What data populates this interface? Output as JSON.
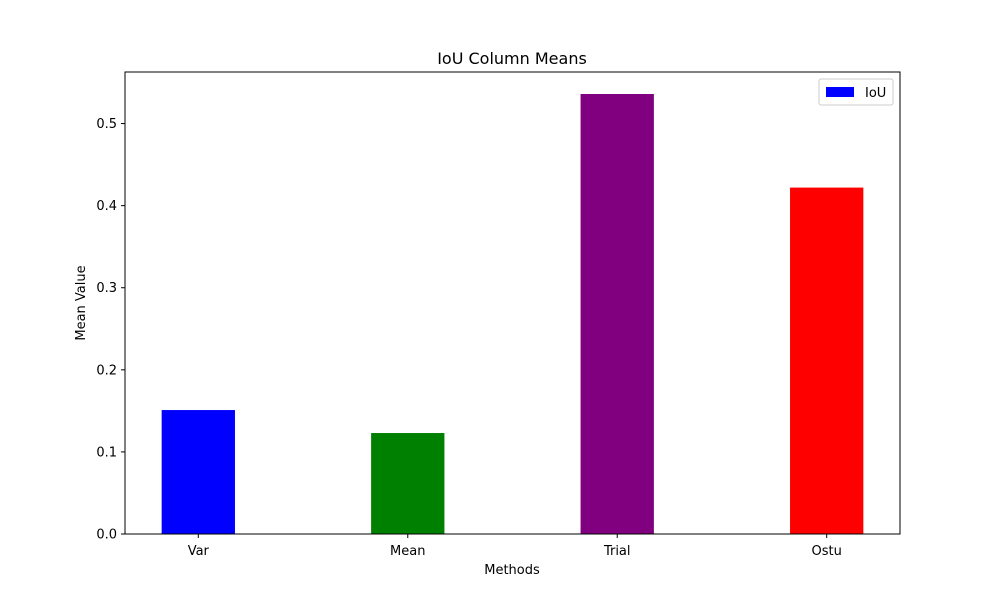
{
  "chart_data": {
    "type": "bar",
    "title": "IoU Column Means",
    "xlabel": "Methods",
    "ylabel": "Mean Value",
    "categories": [
      "Var",
      "Mean",
      "Trial",
      "Ostu"
    ],
    "series": [
      {
        "name": "IoU",
        "values": [
          0.151,
          0.123,
          0.536,
          0.422
        ],
        "colors": [
          "#0000ff",
          "#008000",
          "#800080",
          "#ff0000"
        ]
      }
    ],
    "ylim": [
      0,
      0.5628
    ],
    "yticks": [
      0.0,
      0.1,
      0.2,
      0.3,
      0.4,
      0.5
    ],
    "ytick_labels": [
      "0.0",
      "0.1",
      "0.2",
      "0.3",
      "0.4",
      "0.5"
    ],
    "legend_position": "top-right",
    "legend_color": "#0000ff",
    "grid": false
  }
}
